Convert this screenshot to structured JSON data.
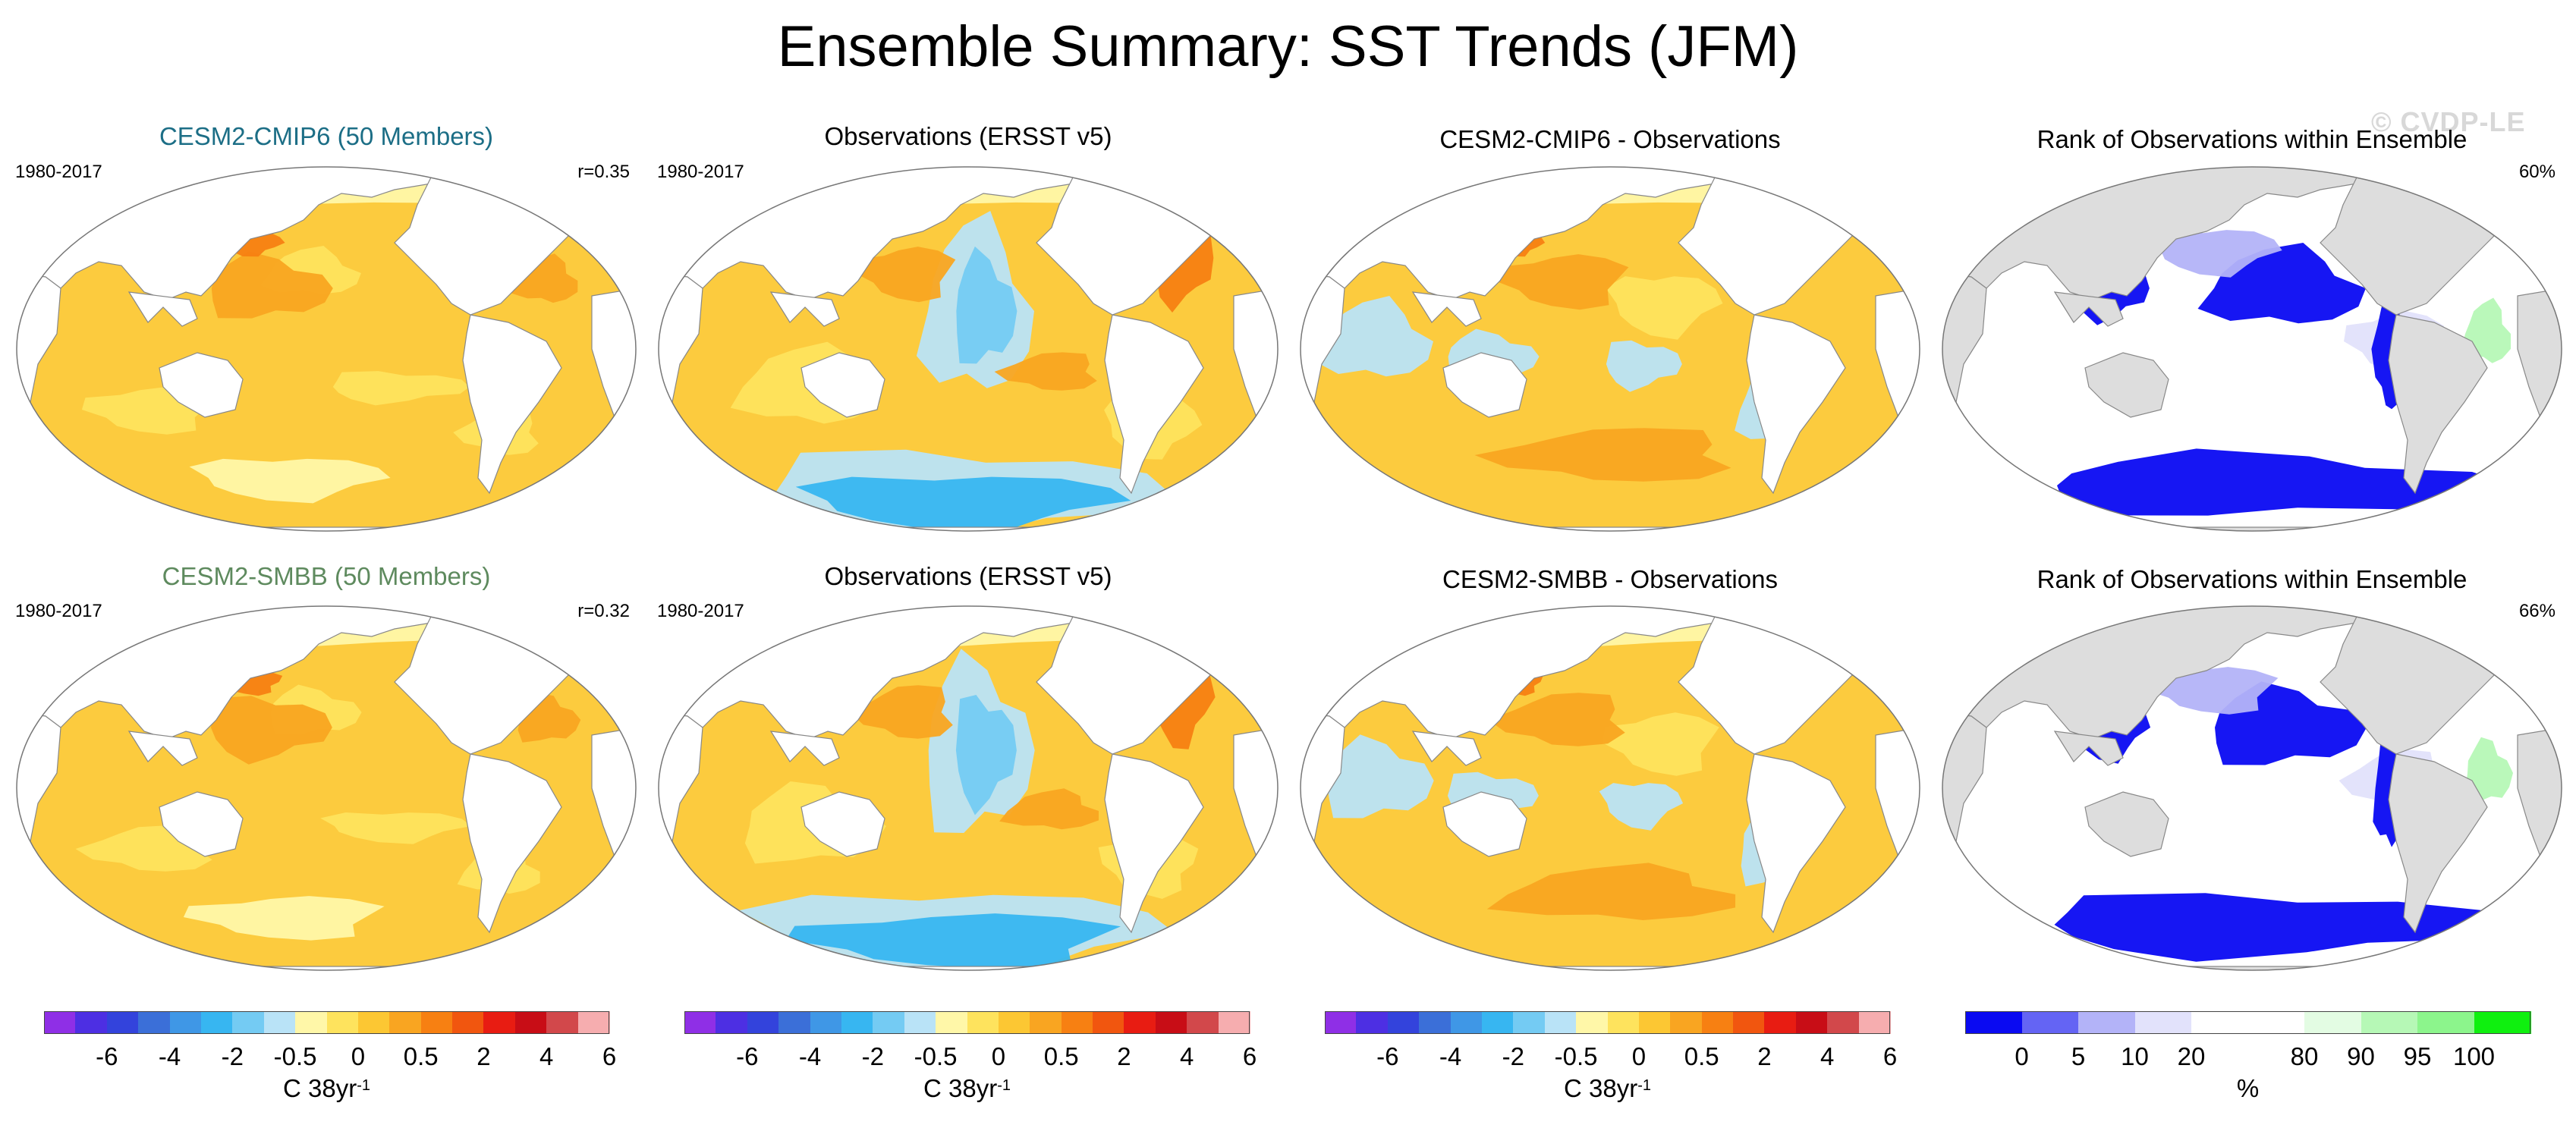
{
  "title": "Ensemble Summary: SST Trends (JFM)",
  "watermark": "© CVDP-LE",
  "rows": [
    {
      "panels": [
        {
          "type": "trend",
          "title": "CESM2-CMIP6 (50 Members)",
          "title_color": "#1c6e86",
          "left_label": "1980-2017",
          "right_label": "r=0.35"
        },
        {
          "type": "obs",
          "title": "Observations (ERSST v5)",
          "title_color": "#000000",
          "left_label": "1980-2017",
          "right_label": ""
        },
        {
          "type": "diff",
          "title": "CESM2-CMIP6 - Observations",
          "title_color": "#000000",
          "left_label": "",
          "right_label": ""
        },
        {
          "type": "rank",
          "title": "Rank of Observations within Ensemble",
          "title_color": "#000000",
          "left_label": "",
          "right_label": "60%"
        }
      ]
    },
    {
      "panels": [
        {
          "type": "trend",
          "title": "CESM2-SMBB (50 Members)",
          "title_color": "#5e8a5e",
          "left_label": "1980-2017",
          "right_label": "r=0.32"
        },
        {
          "type": "obs",
          "title": "Observations (ERSST v5)",
          "title_color": "#000000",
          "left_label": "1980-2017",
          "right_label": ""
        },
        {
          "type": "diff",
          "title": "CESM2-SMBB - Observations",
          "title_color": "#000000",
          "left_label": "",
          "right_label": ""
        },
        {
          "type": "rank",
          "title": "Rank of Observations within Ensemble",
          "title_color": "#000000",
          "left_label": "",
          "right_label": "66%"
        }
      ]
    }
  ],
  "colorbars": [
    {
      "colors": [
        "#8f2fe6",
        "#4d2fe3",
        "#3343dc",
        "#3b6fd8",
        "#3f97e6",
        "#37b6f1",
        "#74cbf3",
        "#b9e3f7",
        "#fff7a8",
        "#fee35d",
        "#fcc733",
        "#f9a521",
        "#f78012",
        "#f1560f",
        "#e81c12",
        "#c80d16",
        "#d2484b",
        "#f6adaf"
      ],
      "ticks": [
        "-6",
        "-4",
        "-2",
        "-0.5",
        "0",
        "0.5",
        "2",
        "4",
        "6"
      ],
      "units": "C 38yr",
      "units_sup": "-1"
    },
    {
      "colors": [
        "#8f2fe6",
        "#4d2fe3",
        "#3343dc",
        "#3b6fd8",
        "#3f97e6",
        "#37b6f1",
        "#74cbf3",
        "#b9e3f7",
        "#fff7a8",
        "#fee35d",
        "#fcc733",
        "#f9a521",
        "#f78012",
        "#f1560f",
        "#e81c12",
        "#c80d16",
        "#d2484b",
        "#f6adaf"
      ],
      "ticks": [
        "-6",
        "-4",
        "-2",
        "-0.5",
        "0",
        "0.5",
        "2",
        "4",
        "6"
      ],
      "units": "C 38yr",
      "units_sup": "-1"
    },
    {
      "colors": [
        "#8f2fe6",
        "#4d2fe3",
        "#3343dc",
        "#3b6fd8",
        "#3f97e6",
        "#37b6f1",
        "#74cbf3",
        "#b9e3f7",
        "#fff7a8",
        "#fee35d",
        "#fcc733",
        "#f9a521",
        "#f78012",
        "#f1560f",
        "#e81c12",
        "#c80d16",
        "#d2484b",
        "#f6adaf"
      ],
      "ticks": [
        "-6",
        "-4",
        "-2",
        "-0.5",
        "0",
        "0.5",
        "2",
        "4",
        "6"
      ],
      "units": "C 38yr",
      "units_sup": "-1"
    },
    {
      "colors": [
        "#0a0af2",
        "#6464f4",
        "#b3b3f8",
        "#e2e2fb",
        "#ffffff",
        "#ffffff",
        "#e3fce3",
        "#b6f8b6",
        "#8cf58c",
        "#0ff00f"
      ],
      "ticks": [
        "0",
        "5",
        "10",
        "20",
        "80",
        "90",
        "95",
        "100"
      ],
      "units": "%",
      "units_sup": ""
    }
  ],
  "map_colors": {
    "land": "#ffffff",
    "rank_land": "#dddddd",
    "coast": "#888888",
    "frame": "#777777"
  }
}
